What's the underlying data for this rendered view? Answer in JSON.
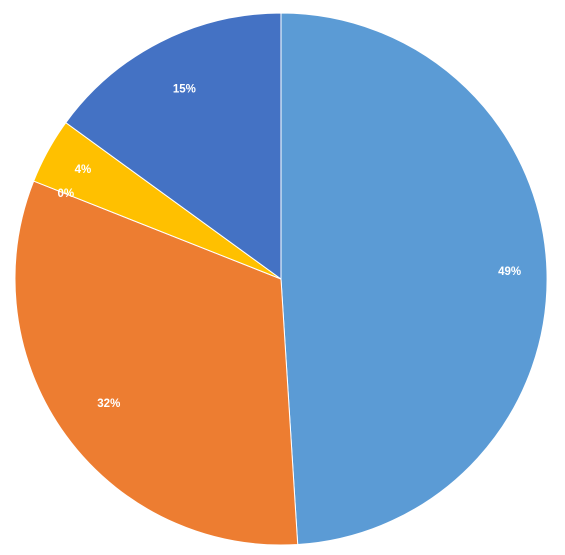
{
  "chart_data": {
    "type": "pie",
    "start_angle_deg": 0,
    "direction": "clockwise",
    "slices": [
      {
        "value": 49,
        "label": "49%",
        "color": "#5B9BD5"
      },
      {
        "value": 32,
        "label": "32%",
        "color": "#ED7D31"
      },
      {
        "value": 0,
        "label": "0%",
        "color": "#A5A5A5"
      },
      {
        "value": 4,
        "label": "4%",
        "color": "#FFC000"
      },
      {
        "value": 15,
        "label": "15%",
        "color": "#4472C4"
      }
    ],
    "legend": "none"
  }
}
